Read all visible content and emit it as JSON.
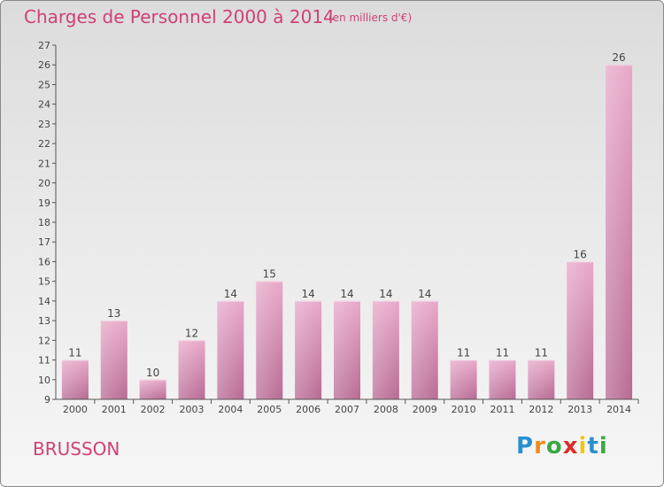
{
  "title": "Charges de Personnel 2000 à 2014",
  "unit_note": "(en milliers d'€)",
  "commune": "BRUSSON",
  "logo": {
    "text": "Proxiti",
    "letters": [
      {
        "char": "P",
        "color": "#2a8fd0"
      },
      {
        "char": "r",
        "color": "#f08a1c"
      },
      {
        "char": "o",
        "color": "#3aa845"
      },
      {
        "char": "x",
        "color": "#e02a2a"
      },
      {
        "char": "i",
        "color": "#f0c419"
      },
      {
        "char": "t",
        "color": "#2a8fd0"
      },
      {
        "char": "i",
        "color": "#3aa845"
      }
    ]
  },
  "chart_data": {
    "type": "bar",
    "title": "Charges de Personnel 2000 à 2014",
    "subtitle": "(en milliers d'€)",
    "categories": [
      "2000",
      "2001",
      "2002",
      "2003",
      "2004",
      "2005",
      "2006",
      "2007",
      "2008",
      "2009",
      "2010",
      "2011",
      "2012",
      "2013",
      "2014"
    ],
    "values": [
      11,
      13,
      10,
      12,
      14,
      15,
      14,
      14,
      14,
      14,
      11,
      11,
      11,
      16,
      26
    ],
    "ylim": [
      9,
      27
    ],
    "yticks": [
      9,
      10,
      11,
      12,
      13,
      14,
      15,
      16,
      17,
      18,
      19,
      20,
      21,
      22,
      23,
      24,
      25,
      26,
      27
    ],
    "grid": false,
    "data_labels": true,
    "bar_color": "#d97aa6"
  }
}
